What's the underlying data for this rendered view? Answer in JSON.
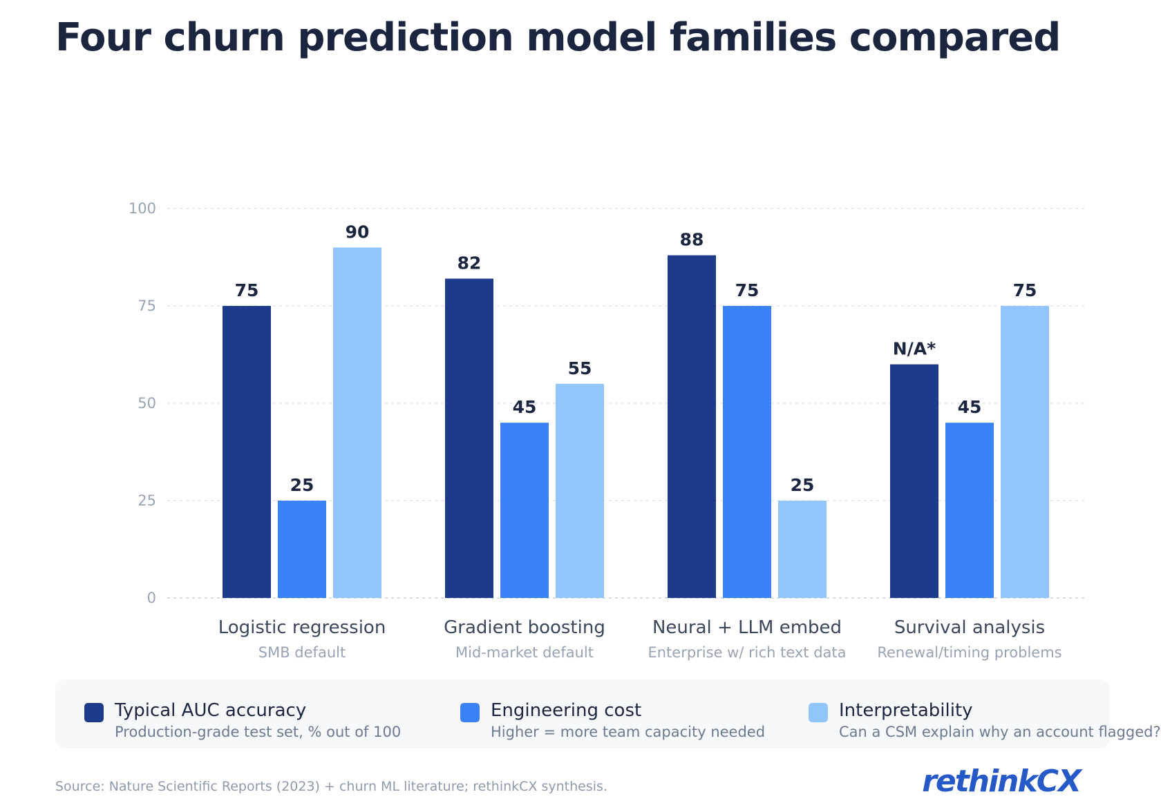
{
  "title": "Four churn prediction model families compared",
  "chart_data": {
    "type": "bar",
    "title": "Four churn prediction model families compared",
    "categories": [
      "Logistic regression",
      "Gradient boosting",
      "Neural + LLM embed",
      "Survival analysis"
    ],
    "category_subtitles": [
      "SMB default",
      "Mid-market default",
      "Enterprise w/ rich text data",
      "Renewal/timing problems"
    ],
    "series": [
      {
        "name": "Typical AUC accuracy",
        "description": "Production-grade test set, % out of 100",
        "color": "#1e3a8a",
        "values": [
          75,
          82,
          88,
          60
        ],
        "labels": [
          "75",
          "82",
          "88",
          "N/A*"
        ]
      },
      {
        "name": "Engineering cost",
        "description": "Higher = more team capacity needed",
        "color": "#3b82f6",
        "values": [
          25,
          45,
          75,
          45
        ],
        "labels": [
          "25",
          "45",
          "75",
          "45"
        ]
      },
      {
        "name": "Interpretability",
        "description": "Can a CSM explain why an account flagged?",
        "color": "#93c5fd",
        "values": [
          90,
          55,
          25,
          75
        ],
        "labels": [
          "90",
          "55",
          "25",
          "75"
        ]
      }
    ],
    "yticks": [
      0,
      25,
      50,
      75,
      100
    ],
    "ylim": [
      0,
      100
    ],
    "grid": true,
    "legend_position": "bottom",
    "xlabel": "",
    "ylabel": ""
  },
  "source": "Source: Nature Scientific Reports (2023) + churn ML literature; rethinkCX synthesis.",
  "brand": {
    "name_a": "rethink",
    "name_b": "CX",
    "color": "#2559c7"
  }
}
